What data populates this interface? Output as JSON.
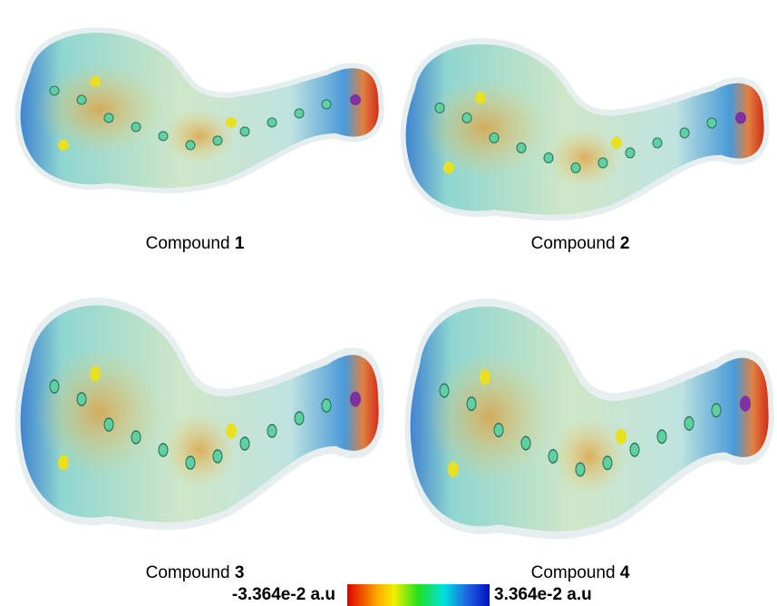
{
  "panels": [
    {
      "label": "Compound",
      "number": "1"
    },
    {
      "label": "Compound",
      "number": "2"
    },
    {
      "label": "Compound",
      "number": "3"
    },
    {
      "label": "Compound",
      "number": "4"
    }
  ],
  "colorbar": {
    "min_label": "-3.364e-2 a.u",
    "max_label": "3.364e-2 a.u"
  }
}
